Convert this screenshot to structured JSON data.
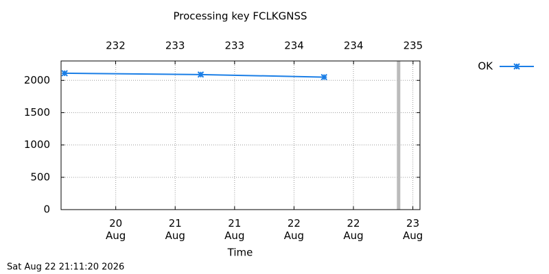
{
  "chart_data": {
    "type": "line",
    "title": "Processing key FCLKGNSS",
    "x_label": "Time",
    "footer": "Sat Aug 22 21:11:20 2026",
    "x": [
      19.57,
      20.715,
      21.753
    ],
    "series": [
      {
        "name": "OK",
        "color": "#1a7ee6",
        "values": [
          2110,
          2090,
          2050
        ]
      }
    ],
    "xlim": [
      19.54,
      22.56
    ],
    "xticks": [
      {
        "value": 20,
        "label": "20 Aug"
      },
      {
        "value": 20.5,
        "label": "21 Aug"
      },
      {
        "value": 21,
        "label": "21 Aug"
      },
      {
        "value": 21.5,
        "label": "22 Aug"
      },
      {
        "value": 22,
        "label": "22 Aug"
      },
      {
        "value": 22.5,
        "label": "23 Aug"
      }
    ],
    "x2lim": [
      231.45,
      235.07
    ],
    "x2ticks": [
      {
        "value": 232,
        "label": "232"
      },
      {
        "value": 232.6,
        "label": "233"
      },
      {
        "value": 233.2,
        "label": "233"
      },
      {
        "value": 233.8,
        "label": "234"
      },
      {
        "value": 234.4,
        "label": "234"
      },
      {
        "value": 235,
        "label": "235"
      }
    ],
    "ylim": [
      0,
      2300
    ],
    "yticks": [
      0,
      500,
      1000,
      1500,
      2000
    ],
    "grid": true,
    "vline": {
      "x": 22.38,
      "color": "#bbbbbb"
    },
    "legend": "right"
  }
}
